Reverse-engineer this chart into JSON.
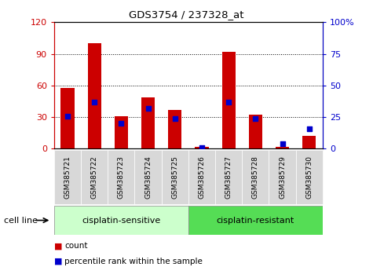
{
  "title": "GDS3754 / 237328_at",
  "samples": [
    "GSM385721",
    "GSM385722",
    "GSM385723",
    "GSM385724",
    "GSM385725",
    "GSM385726",
    "GSM385727",
    "GSM385728",
    "GSM385729",
    "GSM385730"
  ],
  "count_values": [
    58,
    100,
    31,
    49,
    37,
    2,
    92,
    32,
    2,
    12
  ],
  "percentile_values": [
    26,
    37,
    20,
    32,
    24,
    1,
    37,
    24,
    4,
    16
  ],
  "left_ylim": [
    0,
    120
  ],
  "right_ylim": [
    0,
    100
  ],
  "left_yticks": [
    0,
    30,
    60,
    90,
    120
  ],
  "right_yticks": [
    0,
    25,
    50,
    75,
    100
  ],
  "right_yticklabels": [
    "0",
    "25",
    "50",
    "75",
    "100%"
  ],
  "bar_color": "#cc0000",
  "dot_color": "#0000cc",
  "group1_label": "cisplatin-sensitive",
  "group2_label": "cisplatin-resistant",
  "group1_color": "#ccffcc",
  "group2_color": "#55dd55",
  "cell_line_label": "cell line",
  "legend_count": "count",
  "legend_pct": "percentile rank within the sample",
  "bar_width": 0.5,
  "dot_size": 22,
  "background_color": "#ffffff",
  "tick_label_bg": "#d8d8d8",
  "grid_color": "#000000"
}
